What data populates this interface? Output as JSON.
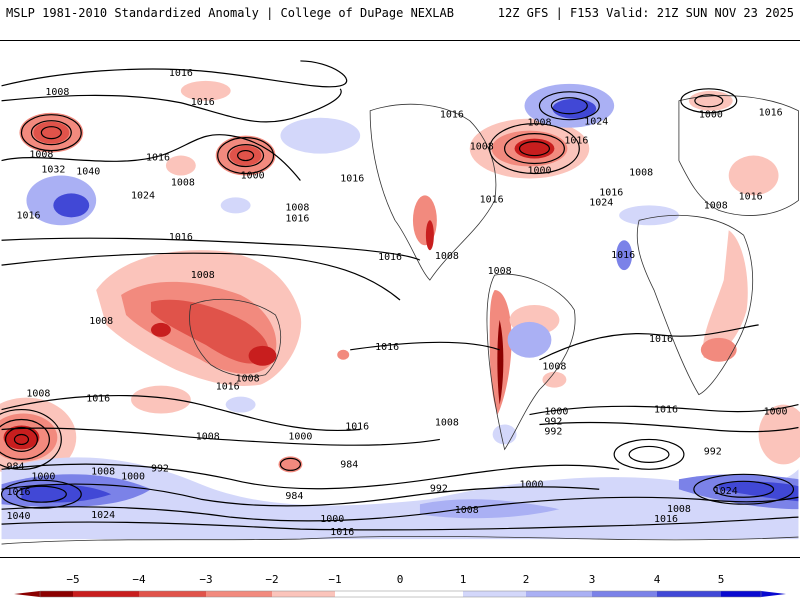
{
  "header": {
    "left_title": "MSLP 1981-2010 Standardized Anomaly | College of DuPage NEXLAB",
    "right_title": "12Z GFS | F153 Valid: 21Z SUN NOV 23 2025"
  },
  "colors": {
    "neg5": "#8b0000",
    "neg4": "#c81e1e",
    "neg3": "#e0534a",
    "neg2": "#f28a7e",
    "neg1": "#fbc4bb",
    "pos1": "#d3d7fa",
    "pos2": "#aab0f4",
    "pos3": "#7b82e8",
    "pos4": "#4148d6",
    "pos5": "#0a0ad0",
    "land": "#e8e8e8",
    "contour": "#000000"
  },
  "colorbar": {
    "ticks": [
      "−5",
      "−4",
      "−3",
      "−2",
      "−1",
      "0",
      "1",
      "2",
      "3",
      "4",
      "5"
    ]
  },
  "isobar_labels": [
    "1016",
    "1008",
    "1016",
    "1008",
    "1032",
    "1040",
    "1016",
    "1008",
    "1024",
    "1016",
    "1000",
    "1016",
    "1008",
    "1016",
    "1016",
    "1008",
    "1008",
    "1000",
    "1016",
    "1024",
    "1016",
    "1000",
    "1016",
    "1008",
    "1016",
    "1016",
    "1008",
    "1024",
    "1016",
    "1016",
    "1008",
    "1008",
    "1016",
    "1008",
    "1016",
    "1008",
    "1016",
    "1016",
    "1008",
    "1008",
    "1016",
    "1008",
    "1000",
    "992",
    "984",
    "1008",
    "1016",
    "1000",
    "1008",
    "1016",
    "1000",
    "992",
    "1000",
    "992",
    "984",
    "984",
    "992",
    "1000",
    "1024",
    "1040",
    "1016",
    "1008",
    "1000",
    "1016",
    "1008",
    "1000",
    "992",
    "1024",
    "1008",
    "1016"
  ]
}
